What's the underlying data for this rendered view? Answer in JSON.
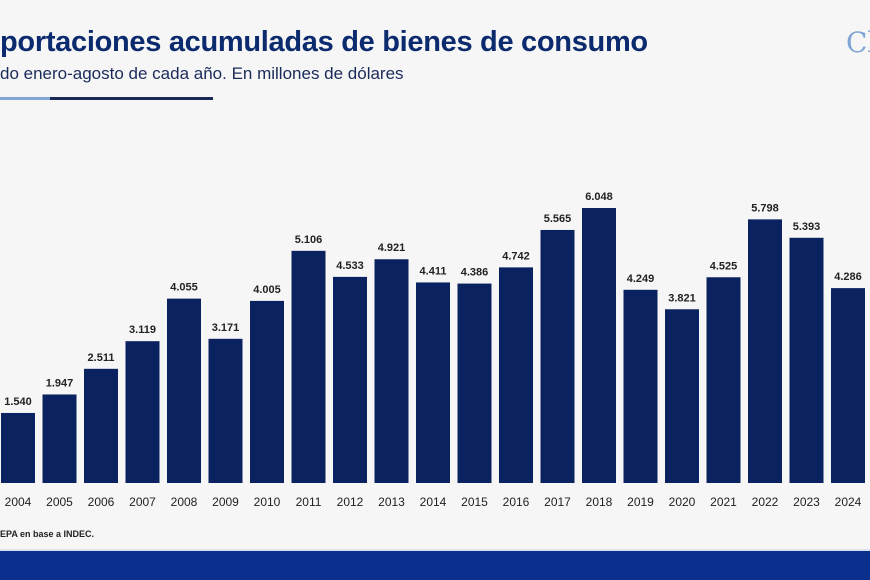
{
  "header": {
    "title": "portaciones acumuladas de bienes de consumo",
    "subtitle": "do enero-agosto de cada año. En millones de dólares",
    "logo_text": "Cl"
  },
  "footer": {
    "source": "EPA en base a INDEC."
  },
  "colors": {
    "bar": "#0b2260",
    "title": "#0c2a6e",
    "band": "#0a2f8c",
    "accent_light": "#7fa6d6"
  },
  "chart_data": {
    "type": "bar",
    "categories": [
      "2004",
      "2005",
      "2006",
      "2007",
      "2008",
      "2009",
      "2010",
      "2011",
      "2012",
      "2013",
      "2014",
      "2015",
      "2016",
      "2017",
      "2018",
      "2019",
      "2020",
      "2021",
      "2022",
      "2023",
      "2024"
    ],
    "values": [
      1540,
      1947,
      2511,
      3119,
      4055,
      3171,
      4005,
      5106,
      4533,
      4921,
      4411,
      4386,
      4742,
      5565,
      6048,
      4249,
      3821,
      4525,
      5798,
      5393,
      4286
    ],
    "labels": [
      "1.540",
      "1.947",
      "2.511",
      "3.119",
      "4.055",
      "3.171",
      "4.005",
      "5.106",
      "4.533",
      "4.921",
      "4.411",
      "4.386",
      "4.742",
      "5.565",
      "6.048",
      "4.249",
      "3.821",
      "4.525",
      "5.798",
      "5.393",
      "4.286"
    ],
    "ylim": [
      0,
      6500
    ],
    "grid": false,
    "xlabel": "",
    "ylabel": ""
  }
}
